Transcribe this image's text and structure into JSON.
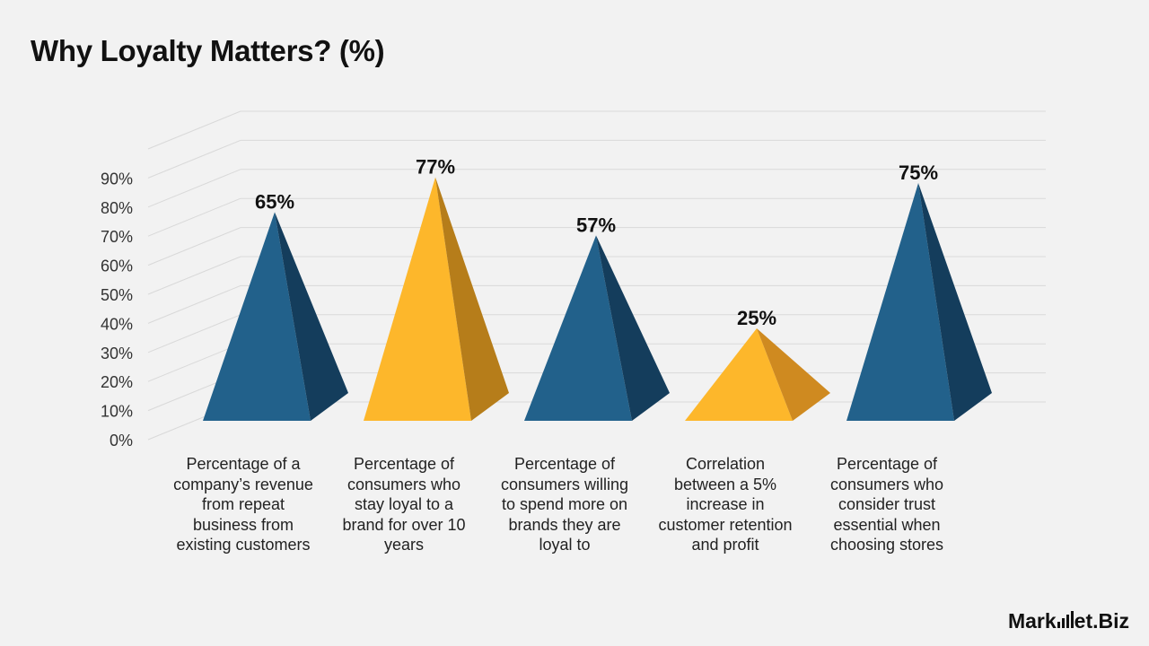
{
  "page": {
    "title": "Why Loyalty Matters? (%)"
  },
  "chart_data": {
    "type": "bar",
    "style": "3d-pyramid",
    "title": "Why Loyalty Matters? (%)",
    "categories": [
      "Percentage of a company’s revenue from repeat business from existing customers",
      "Percentage of consumers who stay loyal to a brand for over 10 years",
      "Percentage of consumers willing to spend more on brands they are loyal to",
      "Correlation between a 5% increase in customer retention and profit",
      "Percentage of consumers who consider trust essential when choosing stores"
    ],
    "values": [
      65,
      77,
      57,
      25,
      75
    ],
    "data_labels": [
      "65%",
      "77%",
      "57%",
      "25%",
      "75%"
    ],
    "colors": [
      "#22618b",
      "#fdb72b",
      "#22618b",
      "#fdb72b",
      "#22618b"
    ],
    "shade_colors": [
      "#143d5c",
      "#b67d1a",
      "#143d5c",
      "#cf8a20",
      "#143d5c"
    ],
    "yaxis": {
      "ylim": [
        0,
        100
      ],
      "ticks": [
        0,
        10,
        20,
        30,
        40,
        50,
        60,
        70,
        80,
        90
      ],
      "tick_labels": [
        "0%",
        "10%",
        "20%",
        "30%",
        "40%",
        "50%",
        "60%",
        "70%",
        "80%",
        "90%"
      ]
    },
    "grid": true,
    "legend": "none"
  },
  "branding": {
    "logo_text_a": "Mark",
    "logo_text_b": "et.Biz"
  }
}
